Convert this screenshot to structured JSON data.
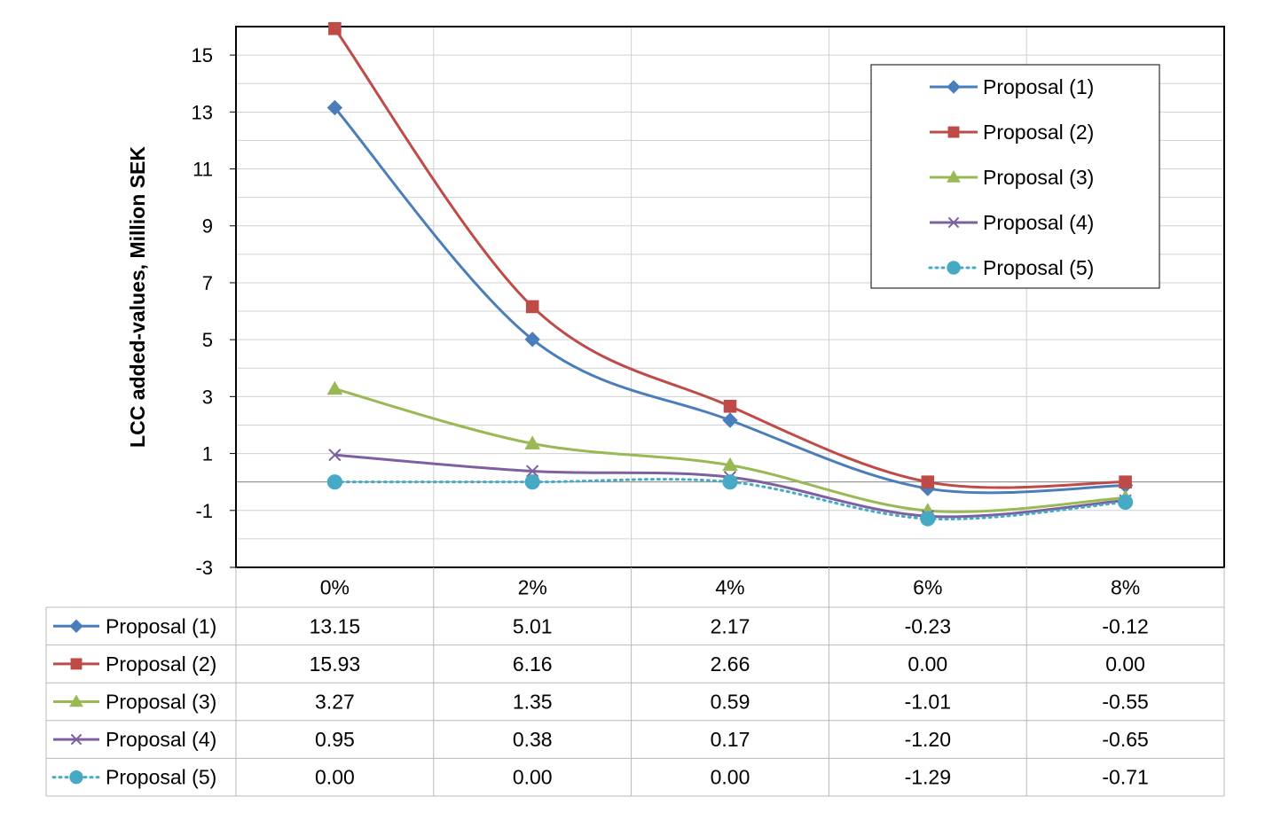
{
  "chart_data": {
    "type": "line",
    "title": "",
    "xlabel": "",
    "ylabel": "LCC added-values, Million SEK",
    "categories": [
      "0%",
      "2%",
      "4%",
      "6%",
      "8%"
    ],
    "yticks": [
      "-3",
      "-1",
      "1",
      "3",
      "5",
      "7",
      "9",
      "11",
      "13",
      "15"
    ],
    "ylim": [
      -3,
      16
    ],
    "grid": true,
    "legend_position": "top-right",
    "data_table": true,
    "series": [
      {
        "name": "Proposal (1)",
        "values": [
          13.15,
          5.01,
          2.17,
          -0.23,
          -0.12
        ],
        "labels": [
          "13.15",
          "5.01",
          "2.17",
          "-0.23",
          "-0.12"
        ],
        "color": "#4a7ebb",
        "marker": "diamond",
        "dashed": false
      },
      {
        "name": "Proposal (2)",
        "values": [
          15.93,
          6.16,
          2.66,
          0.0,
          0.0
        ],
        "labels": [
          "15.93",
          "6.16",
          "2.66",
          "0.00",
          "0.00"
        ],
        "color": "#be4b48",
        "marker": "square",
        "dashed": false
      },
      {
        "name": "Proposal (3)",
        "values": [
          3.27,
          1.35,
          0.59,
          -1.01,
          -0.55
        ],
        "labels": [
          "3.27",
          "1.35",
          "0.59",
          "-1.01",
          "-0.55"
        ],
        "color": "#98b954",
        "marker": "triangle",
        "dashed": false
      },
      {
        "name": "Proposal (4)",
        "values": [
          0.95,
          0.38,
          0.17,
          -1.2,
          -0.65
        ],
        "labels": [
          "0.95",
          "0.38",
          "0.17",
          "-1.20",
          "-0.65"
        ],
        "color": "#7d60a0",
        "marker": "x",
        "dashed": false
      },
      {
        "name": "Proposal (5)",
        "values": [
          0.0,
          0.0,
          0.0,
          -1.29,
          -0.71
        ],
        "labels": [
          "0.00",
          "0.00",
          "0.00",
          "-1.29",
          "-0.71"
        ],
        "color": "#46aac5",
        "marker": "circle",
        "dashed": true
      }
    ]
  }
}
